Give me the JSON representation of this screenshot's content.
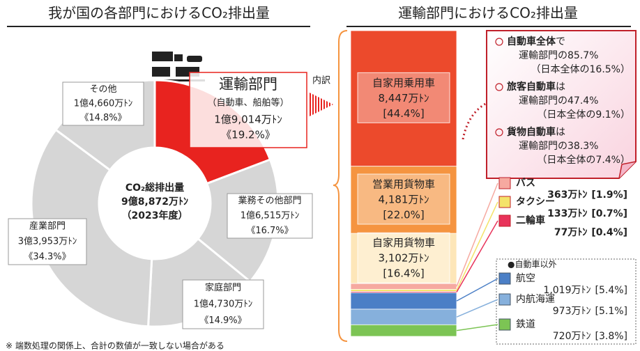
{
  "chart_data": [
    {
      "type": "donut",
      "title": "我が国の各部門におけるCO₂排出量",
      "center_label": [
        "CO₂総排出量",
        "9億8,872万ﾄﾝ",
        "（2023年度）"
      ],
      "categories": [
        "運輸部門",
        "業務その他部門",
        "家庭部門",
        "産業部門",
        "その他"
      ],
      "category_note": "（自動車、船舶等）",
      "amounts": [
        "1億9,014万ﾄﾝ",
        "1億6,515万ﾄﾝ",
        "1億4,730万ﾄﾝ",
        "3億3,953万ﾄﾝ",
        "1億4,660万ﾄﾝ"
      ],
      "values": [
        19.2,
        16.7,
        14.9,
        34.3,
        14.8
      ],
      "value_labels": [
        "《19.2%》",
        "《16.7%》",
        "《14.9%》",
        "《34.3%》",
        "《14.8%》"
      ],
      "colors": [
        "#e8231f",
        "#d6d6d6",
        "#d6d6d6",
        "#d6d6d6",
        "#d6d6d6"
      ]
    },
    {
      "type": "stacked_bar",
      "title": "運輸部門におけるCO₂排出量",
      "breakdown_label": "内訳",
      "group_label": "●自動車以外",
      "categories": [
        "自家用乗用車",
        "営業用貨物車",
        "自家用貨物車",
        "バス",
        "タクシー",
        "二輪車",
        "航空",
        "内航海運",
        "鉄道"
      ],
      "amounts": [
        "8,447万ﾄﾝ",
        "4,181万ﾄﾝ",
        "3,102万ﾄﾝ",
        "363万ﾄﾝ",
        "133万ﾄﾝ",
        "77万ﾄﾝ",
        "1,019万ﾄﾝ",
        "973万ﾄﾝ",
        "720万ﾄﾝ"
      ],
      "values": [
        44.4,
        22.0,
        16.4,
        1.9,
        0.7,
        0.4,
        5.4,
        5.1,
        3.8
      ],
      "value_labels": [
        "[44.4%]",
        "[22.0%]",
        "[16.4%]",
        "[1.9%]",
        "[0.7%]",
        "[0.4%]",
        "[5.4%]",
        "[5.1%]",
        "[3.8%]"
      ],
      "colors": [
        "#ec4a2c",
        "#f59440",
        "#fde6b8",
        "#f6a9a0",
        "#f4e36a",
        "#e8335a",
        "#4b7fc6",
        "#86b0dc",
        "#7cc454"
      ],
      "annotations": [
        {
          "heading": "自動車全体",
          "suffix": "で",
          "detail": "運輸部門の85.7%",
          "note": "（日本全体の16.5%）"
        },
        {
          "heading": "旅客自動車",
          "suffix": "は",
          "detail": "運輸部門の47.4%",
          "note": "（日本全体の9.1%）"
        },
        {
          "heading": "貨物自動車",
          "suffix": "は",
          "detail": "運輸部門の38.3%",
          "note": "（日本全体の7.4%）"
        }
      ]
    }
  ],
  "footnote": "※ 端数処理の関係上、合計の数値が一致しない場合がある"
}
